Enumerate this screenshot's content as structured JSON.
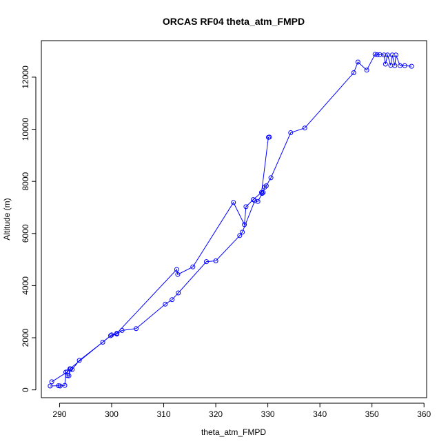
{
  "chart_data": {
    "type": "line",
    "title": "ORCAS RF04 theta_atm_FMPD",
    "xlabel": "theta_atm_FMPD",
    "ylabel": "Altitude (m)",
    "xlim": [
      286.5,
      360.5
    ],
    "ylim": [
      -300,
      13400
    ],
    "xticks": [
      290,
      300,
      310,
      320,
      330,
      340,
      350,
      360
    ],
    "yticks": [
      0,
      2000,
      4000,
      6000,
      8000,
      10000,
      12000
    ],
    "grid": false,
    "legend": "none",
    "series_color": "#0000ff",
    "markers": "open-circle",
    "series": [
      {
        "x": [
          288.2,
          289.8,
          290.1,
          291.0,
          291.2,
          291.5,
          291.8,
          292.1,
          292.4,
          293.8,
          298.3,
          299.8,
          301.0,
          302.0,
          304.7,
          310.3,
          311.6,
          312.8,
          318.2,
          320.0,
          324.6,
          325.1,
          327.5,
          328.1,
          328.9,
          329.1,
          329.4,
          329.7,
          330.6,
          334.4,
          337.1,
          346.5,
          347.3,
          349.0,
          350.6,
          351.0,
          351.5,
          352.3,
          352.6,
          353.0,
          353.6,
          353.9,
          354.4,
          354.6,
          355.4,
          356.3,
          357.6
        ],
        "y": [
          150,
          160,
          150,
          170,
          680,
          550,
          540,
          800,
          780,
          1130,
          1830,
          2080,
          2140,
          2280,
          2350,
          3290,
          3460,
          3720,
          4920,
          4950,
          5920,
          6050,
          7260,
          7230,
          7540,
          7570,
          7780,
          7830,
          8140,
          9870,
          10050,
          12170,
          12580,
          12270,
          12880,
          12860,
          12860,
          12850,
          12500,
          12850,
          12450,
          12850,
          12440,
          12850,
          12440,
          12440,
          12420
        ]
      },
      {
        "x": [
          288.5,
          291.5,
          292.0,
          300.0,
          301.0,
          312.5,
          312.7,
          315.6,
          323.4,
          325.5,
          325.8,
          327.2,
          328.8,
          330.1,
          330.3
        ],
        "y": [
          310,
          690,
          810,
          2110,
          2170,
          4620,
          4430,
          4720,
          7190,
          6340,
          7030,
          7300,
          7580,
          9690,
          9700
        ]
      }
    ]
  }
}
